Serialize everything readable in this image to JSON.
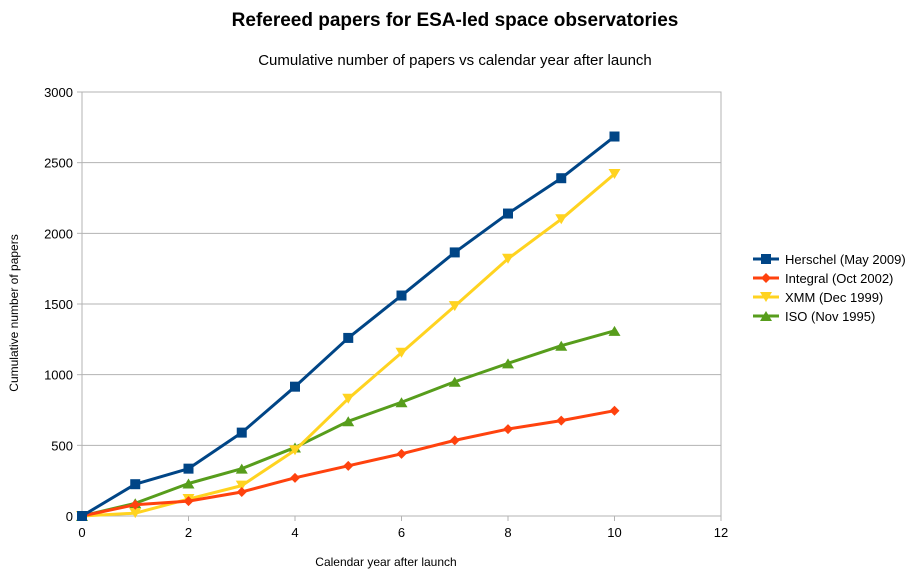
{
  "chart_data": {
    "type": "line",
    "title": "Refereed papers for ESA-led space observatories",
    "subtitle": "Cumulative number of papers vs calendar year after launch",
    "xlabel": "Calendar year after launch",
    "ylabel": "Cumulative number of papers",
    "xlim": [
      0,
      12
    ],
    "ylim": [
      0,
      3000
    ],
    "xticks": [
      0,
      2,
      4,
      6,
      8,
      10,
      12
    ],
    "yticks": [
      0,
      500,
      1000,
      1500,
      2000,
      2500,
      3000
    ],
    "grid": true,
    "legend_position": "right",
    "x": [
      0,
      1,
      2,
      3,
      4,
      5,
      6,
      7,
      8,
      9,
      10
    ],
    "series": [
      {
        "name": "Herschel (May 2009)",
        "color": "#004586",
        "marker": "square",
        "values": [
          0,
          225,
          335,
          590,
          915,
          1260,
          1560,
          1865,
          2140,
          2390,
          2685
        ]
      },
      {
        "name": "Integral (Oct 2002)",
        "color": "#ff420e",
        "marker": "diamond",
        "values": [
          0,
          80,
          105,
          170,
          270,
          355,
          440,
          535,
          615,
          675,
          745
        ]
      },
      {
        "name": "XMM (Dec 1999)",
        "color": "#ffd320",
        "marker": "triangle-down",
        "values": [
          0,
          20,
          120,
          215,
          465,
          830,
          1155,
          1485,
          1820,
          2100,
          2420
        ]
      },
      {
        "name": "ISO (Nov 1995)",
        "color": "#579d1c",
        "marker": "triangle-up",
        "values": [
          0,
          90,
          230,
          335,
          485,
          670,
          805,
          950,
          1080,
          1205,
          1310
        ]
      }
    ]
  }
}
